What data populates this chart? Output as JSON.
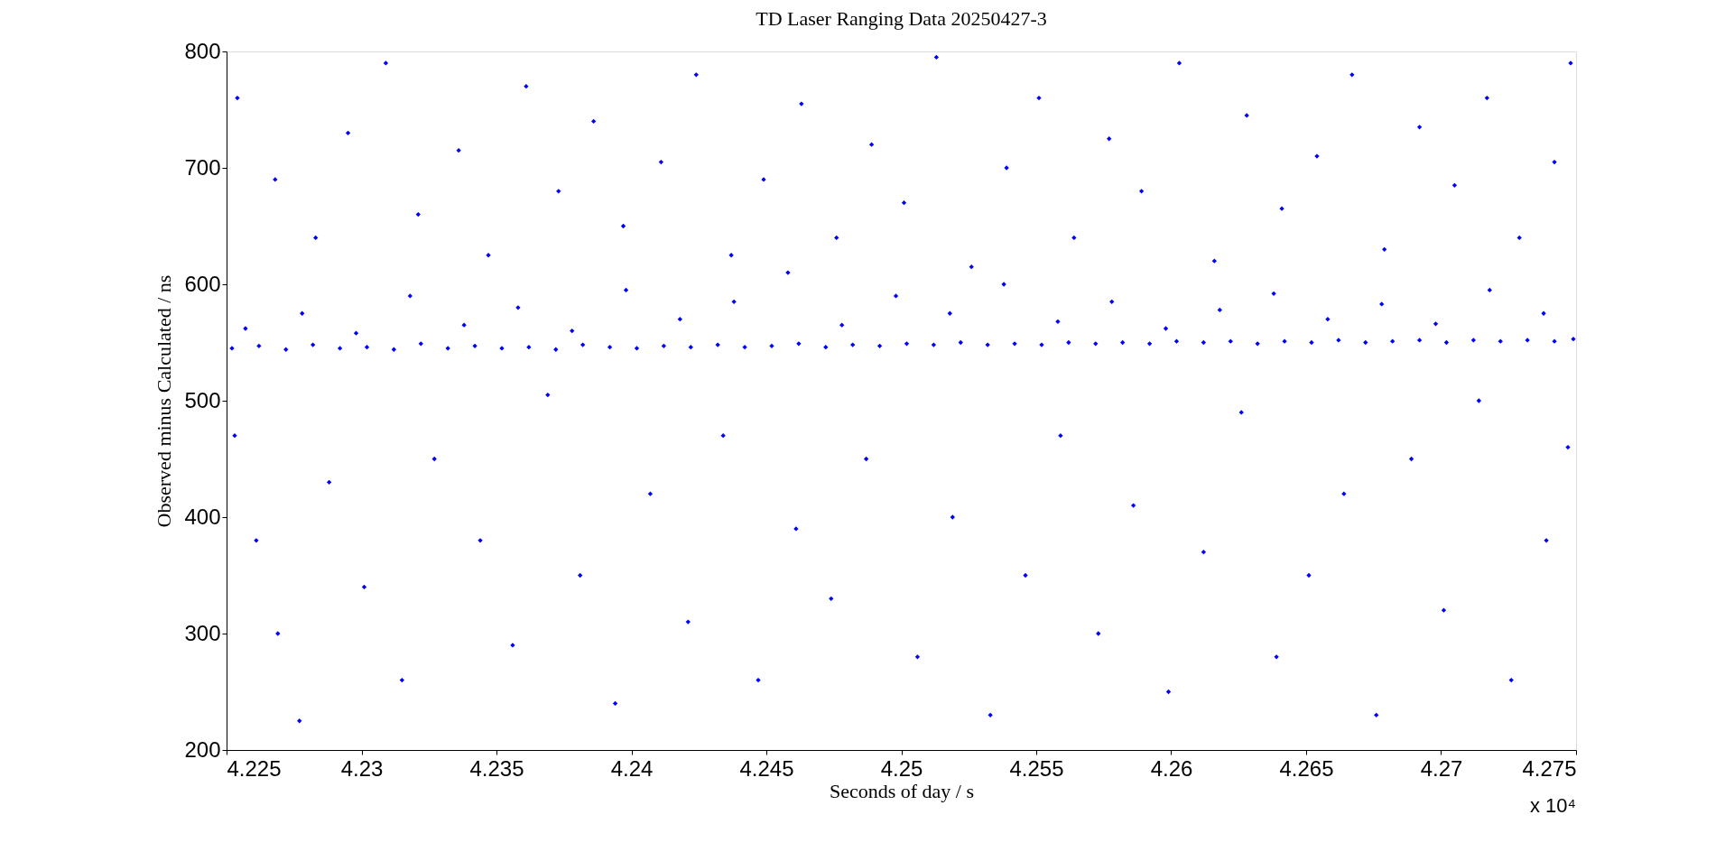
{
  "chart_data": {
    "type": "scatter",
    "title": "TD Laser Ranging Data 20250427-3",
    "xlabel": "Seconds of day / s",
    "ylabel": "Observed minus Calculated / ns",
    "xlim": [
      4.225,
      4.275
    ],
    "xticks": [
      4.225,
      4.23,
      4.235,
      4.24,
      4.245,
      4.25,
      4.255,
      4.26,
      4.265,
      4.27,
      4.275
    ],
    "ylim": [
      200,
      800
    ],
    "yticks": [
      200,
      300,
      400,
      500,
      600,
      700,
      800
    ],
    "marker": "diamond",
    "annotations": [
      "x 10⁴"
    ],
    "series": [
      {
        "color": "#0000ff",
        "x": [
          4.2252,
          4.2262,
          4.2272,
          4.2282,
          4.2292,
          4.2302,
          4.2312,
          4.2322,
          4.2332,
          4.2342,
          4.2352,
          4.2362,
          4.2372,
          4.2382,
          4.2392,
          4.2402,
          4.2412,
          4.2422,
          4.2432,
          4.2442,
          4.2452,
          4.2462,
          4.2472,
          4.2482,
          4.2492,
          4.2502,
          4.2512,
          4.2522,
          4.2532,
          4.2542,
          4.2552,
          4.2562,
          4.2572,
          4.2582,
          4.2592,
          4.2602,
          4.2612,
          4.2622,
          4.2632,
          4.2642,
          4.2652,
          4.2662,
          4.2672,
          4.2682,
          4.2692,
          4.2702,
          4.2712,
          4.2722,
          4.2732,
          4.2742,
          4.2749,
          4.2257,
          4.2278,
          4.2298,
          4.2318,
          4.2338,
          4.2358,
          4.2378,
          4.2398,
          4.2418,
          4.2438,
          4.2458,
          4.2478,
          4.2498,
          4.2518,
          4.2538,
          4.2558,
          4.2578,
          4.2598,
          4.2618,
          4.2638,
          4.2658,
          4.2678,
          4.2698,
          4.2718,
          4.2738,
          4.2254,
          4.2268,
          4.2283,
          4.2295,
          4.2309,
          4.2321,
          4.2336,
          4.2347,
          4.2361,
          4.2373,
          4.2386,
          4.2397,
          4.2411,
          4.2424,
          4.2437,
          4.2449,
          4.2463,
          4.2476,
          4.2489,
          4.2501,
          4.2513,
          4.2526,
          4.2539,
          4.2551,
          4.2564,
          4.2577,
          4.2589,
          4.2603,
          4.2616,
          4.2628,
          4.2641,
          4.2654,
          4.2667,
          4.2679,
          4.2692,
          4.2705,
          4.2717,
          4.2729,
          4.2742,
          4.2748,
          4.2253,
          4.2261,
          4.2269,
          4.2277,
          4.2288,
          4.2301,
          4.2315,
          4.2327,
          4.2344,
          4.2356,
          4.2369,
          4.2381,
          4.2394,
          4.2407,
          4.2421,
          4.2434,
          4.2447,
          4.2461,
          4.2474,
          4.2487,
          4.2506,
          4.2519,
          4.2533,
          4.2546,
          4.2559,
          4.2573,
          4.2586,
          4.2599,
          4.2612,
          4.2626,
          4.2639,
          4.2651,
          4.2664,
          4.2676,
          4.2689,
          4.2701,
          4.2714,
          4.2726,
          4.2739,
          4.2747
        ],
        "values": [
          545,
          547,
          544,
          548,
          545,
          546,
          544,
          549,
          545,
          547,
          545,
          546,
          544,
          548,
          546,
          545,
          547,
          546,
          548,
          546,
          547,
          549,
          546,
          548,
          547,
          549,
          548,
          550,
          548,
          549,
          548,
          550,
          549,
          550,
          549,
          551,
          550,
          551,
          549,
          551,
          550,
          552,
          550,
          551,
          552,
          550,
          552,
          551,
          552,
          551,
          553,
          562,
          575,
          558,
          590,
          565,
          580,
          560,
          595,
          570,
          585,
          610,
          565,
          590,
          575,
          600,
          568,
          585,
          562,
          578,
          592,
          570,
          583,
          566,
          595,
          575,
          760,
          690,
          640,
          730,
          790,
          660,
          715,
          625,
          770,
          680,
          740,
          650,
          705,
          780,
          625,
          690,
          755,
          640,
          720,
          670,
          795,
          615,
          700,
          760,
          640,
          725,
          680,
          790,
          620,
          745,
          665,
          710,
          780,
          630,
          735,
          685,
          760,
          640,
          705,
          790,
          470,
          380,
          300,
          225,
          430,
          340,
          260,
          450,
          380,
          290,
          505,
          350,
          240,
          420,
          310,
          470,
          260,
          390,
          330,
          450,
          280,
          400,
          230,
          350,
          470,
          300,
          410,
          250,
          370,
          490,
          280,
          350,
          420,
          230,
          450,
          320,
          500,
          260,
          380,
          460
        ]
      }
    ]
  }
}
